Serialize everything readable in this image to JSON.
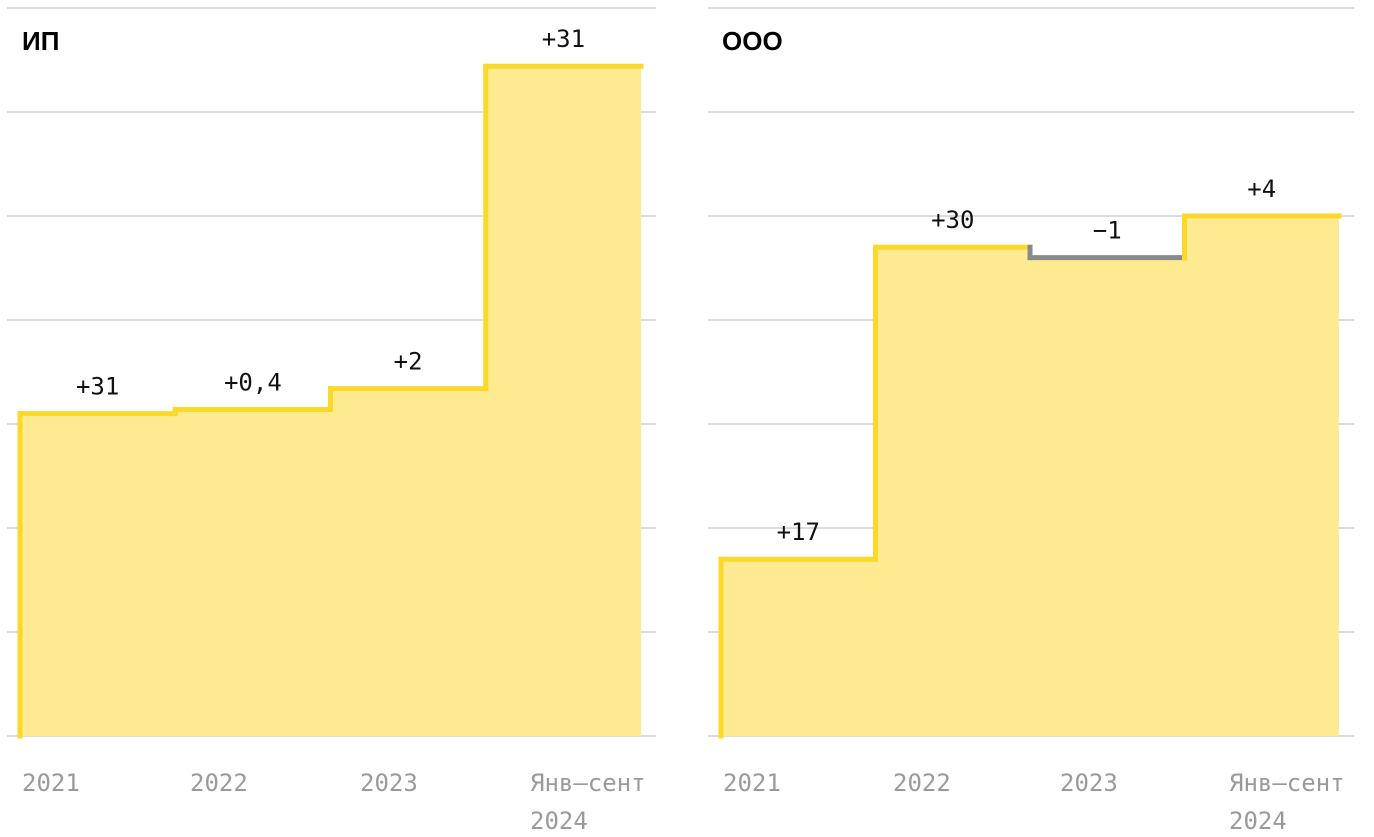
{
  "chart_data": [
    {
      "type": "area",
      "title": "ИП",
      "categories": [
        "2021",
        "2022",
        "2023",
        "Янв–сент 2024"
      ],
      "category_lines": [
        [
          "2021"
        ],
        [
          "2022"
        ],
        [
          "2023"
        ],
        [
          "Янв–сент",
          "2024"
        ]
      ],
      "values": [
        31,
        31.4,
        33.4,
        64.4
      ],
      "deltas": [
        "+31",
        "+0,4",
        "+2",
        "+31"
      ],
      "ylim": [
        0,
        70
      ],
      "grid": true,
      "colors": {
        "fill": "#FEEB91",
        "line": "#FBD92B",
        "decline": "#8A8A8A"
      }
    },
    {
      "type": "area",
      "title": "ООО",
      "categories": [
        "2021",
        "2022",
        "2023",
        "Янв–сент 2024"
      ],
      "category_lines": [
        [
          "2021"
        ],
        [
          "2022"
        ],
        [
          "2023"
        ],
        [
          "Янв–сент",
          "2024"
        ]
      ],
      "values": [
        17,
        47,
        46,
        50
      ],
      "deltas": [
        "+17",
        "+30",
        "−1",
        "+4"
      ],
      "ylim": [
        0,
        70
      ],
      "grid": true,
      "colors": {
        "fill": "#FEEB91",
        "line": "#FBD92B",
        "decline": "#8A8A8A"
      }
    }
  ]
}
